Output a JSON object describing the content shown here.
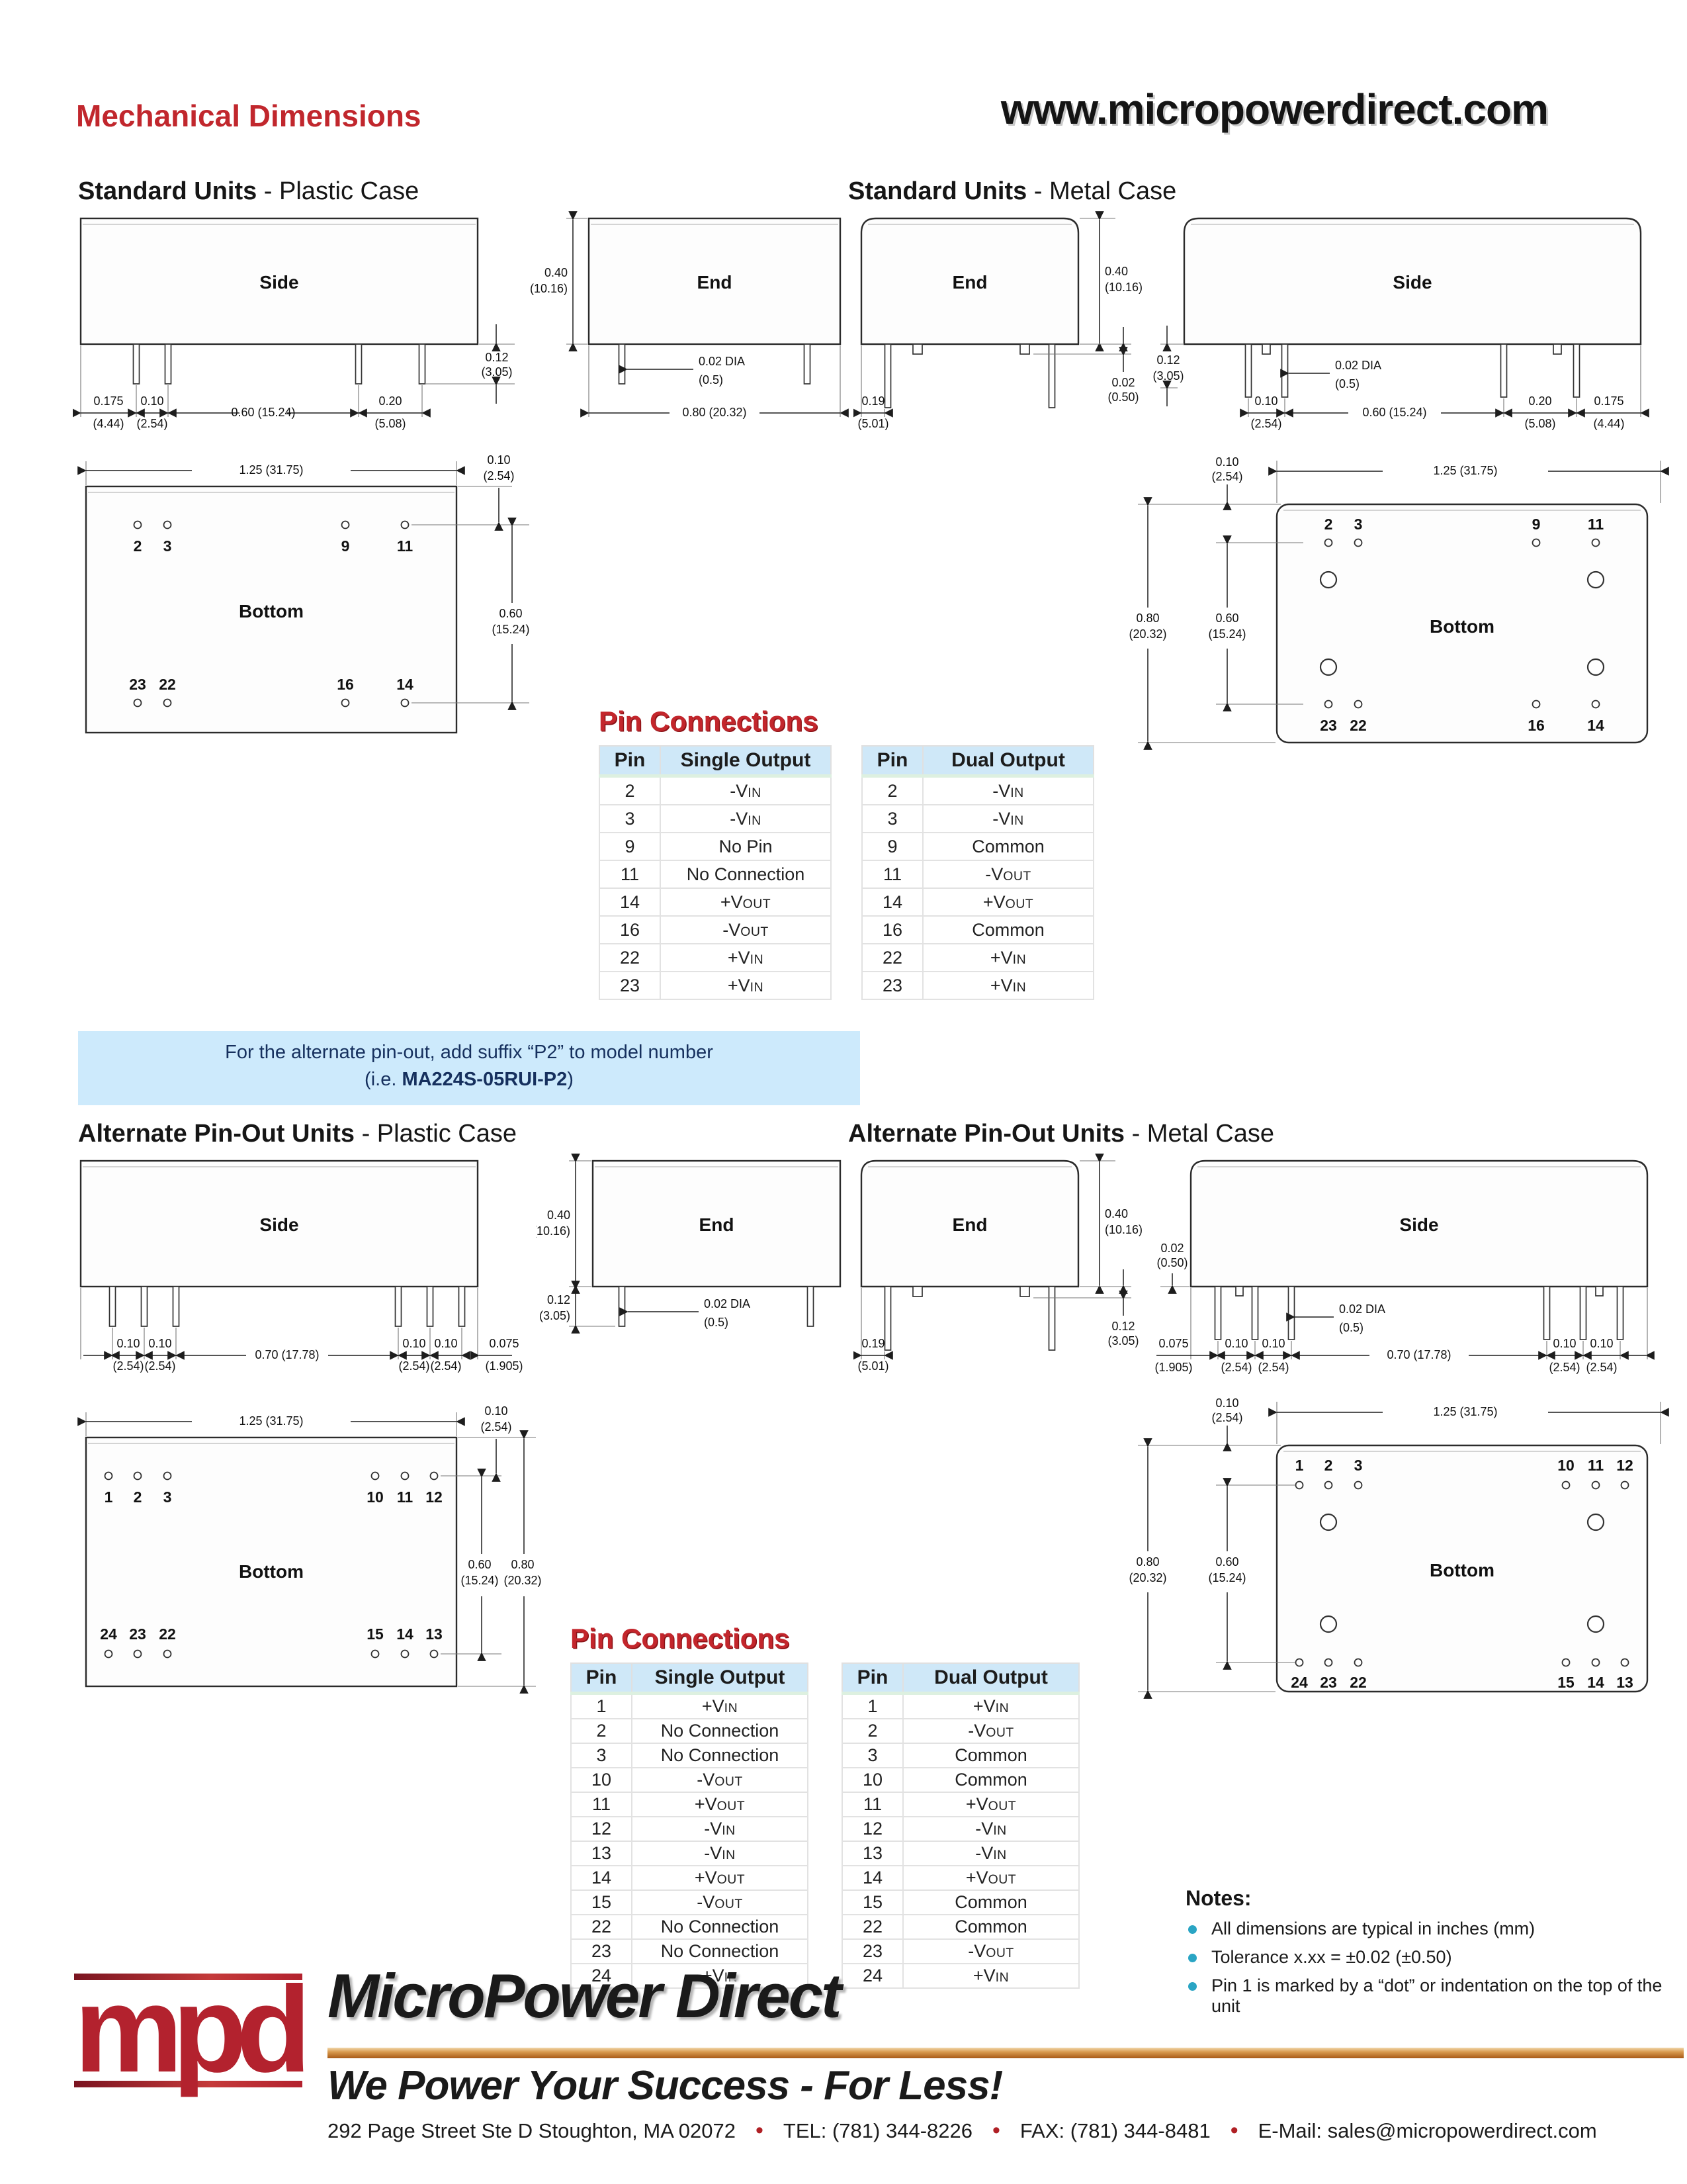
{
  "header": {
    "title": "Mechanical Dimensions",
    "website": "www.micropowerdirect.com"
  },
  "sections": {
    "std_plastic": {
      "bold": "Standard Units",
      "rest": " - Plastic Case"
    },
    "std_metal": {
      "bold": "Standard Units",
      "rest": " - Metal Case"
    },
    "alt_plastic": {
      "bold": "Alternate Pin-Out Units",
      "rest": " - Plastic Case"
    },
    "alt_metal": {
      "bold": "Alternate Pin-Out Units",
      "rest": " - Metal Case"
    }
  },
  "drawings": {
    "labels": {
      "side": "Side",
      "end": "End",
      "bottom": "Bottom"
    },
    "dims": {
      "in_0175": "0.175",
      "mm_0175": "(4.44)",
      "in_010": "0.10",
      "mm_010": "(2.54)",
      "in_060_inline": "0.60 (15.24)",
      "in_020": "0.20",
      "mm_020": "(5.08)",
      "in_012": "0.12",
      "mm_012": "(3.05)",
      "in_040": "0.40",
      "mm_040": "(10.16)",
      "dia_002": "0.02 DIA",
      "mm_dia_002": "(0.5)",
      "in_080_inline": "0.80 (20.32)",
      "in_019": "0.19",
      "mm_019": "(5.01)",
      "in_002": "0.02",
      "mm_002": "(0.50)",
      "in_125_inline": "1.25 (31.75)",
      "in_060": "0.60",
      "mm_060": "(15.24)",
      "in_080": "0.80",
      "mm_080": "(20.32)",
      "in_070_inline": "0.70 (17.78)",
      "in_0075": "0.075",
      "mm_0075": "(1.905)"
    },
    "pins_std": {
      "top": [
        "2",
        "3",
        "9",
        "11"
      ],
      "bottom": [
        "23",
        "22",
        "16",
        "14"
      ]
    },
    "pins_alt": {
      "top": [
        "1",
        "2",
        "3",
        "10",
        "11",
        "12"
      ],
      "bottom": [
        "24",
        "23",
        "22",
        "15",
        "14",
        "13"
      ]
    }
  },
  "banner": {
    "line1": "For the alternate pin-out, add suffix “P2” to model number",
    "line2_prefix": "(i.e. ",
    "model": "MA224S-05RUI-P2",
    "line2_suffix": ")"
  },
  "pin_tables": {
    "title": "Pin Connections",
    "standard": {
      "single": {
        "headers": [
          "Pin",
          "Single Output"
        ],
        "rows": [
          [
            "2",
            "-VIN"
          ],
          [
            "3",
            "-VIN"
          ],
          [
            "9",
            "No Pin"
          ],
          [
            "11",
            "No Connection"
          ],
          [
            "14",
            "+VOUT"
          ],
          [
            "16",
            "-VOUT"
          ],
          [
            "22",
            "+VIN"
          ],
          [
            "23",
            "+VIN"
          ]
        ]
      },
      "dual": {
        "headers": [
          "Pin",
          "Dual Output"
        ],
        "rows": [
          [
            "2",
            "-VIN"
          ],
          [
            "3",
            "-VIN"
          ],
          [
            "9",
            "Common"
          ],
          [
            "11",
            "-VOUT"
          ],
          [
            "14",
            "+VOUT"
          ],
          [
            "16",
            "Common"
          ],
          [
            "22",
            "+VIN"
          ],
          [
            "23",
            "+VIN"
          ]
        ]
      }
    },
    "alternate": {
      "single": {
        "headers": [
          "Pin",
          "Single Output"
        ],
        "rows": [
          [
            "1",
            "+VIN"
          ],
          [
            "2",
            "No Connection"
          ],
          [
            "3",
            "No Connection"
          ],
          [
            "10",
            "-VOUT"
          ],
          [
            "11",
            "+VOUT"
          ],
          [
            "12",
            "-VIN"
          ],
          [
            "13",
            "-VIN"
          ],
          [
            "14",
            "+VOUT"
          ],
          [
            "15",
            "-VOUT"
          ],
          [
            "22",
            "No Connection"
          ],
          [
            "23",
            "No Connection"
          ],
          [
            "24",
            "+VIN"
          ]
        ]
      },
      "dual": {
        "headers": [
          "Pin",
          "Dual Output"
        ],
        "rows": [
          [
            "1",
            "+VIN"
          ],
          [
            "2",
            "-VOUT"
          ],
          [
            "3",
            "Common"
          ],
          [
            "10",
            "Common"
          ],
          [
            "11",
            "+VOUT"
          ],
          [
            "12",
            "-VIN"
          ],
          [
            "13",
            "-VIN"
          ],
          [
            "14",
            "+VOUT"
          ],
          [
            "15",
            "Common"
          ],
          [
            "22",
            "Common"
          ],
          [
            "23",
            "-VOUT"
          ],
          [
            "24",
            "+VIN"
          ]
        ]
      }
    }
  },
  "notes": {
    "title": "Notes:",
    "items": [
      "All dimensions are typical in inches (mm)",
      "Tolerance x.xx = ±0.02 (±0.50)",
      "Pin 1 is marked by a “dot” or indentation on the top of the unit"
    ]
  },
  "footer": {
    "logo_text": "mpd",
    "brand": "MicroPower Direct",
    "tagline": "We Power Your Success - For Less!",
    "address": "292 Page Street Ste D Stoughton, MA 02072",
    "tel": "TEL: (781) 344-8226",
    "fax": "FAX: (781) 344-8481",
    "email": "E-Mail: sales@micropowerdirect.com",
    "bullet": "•"
  }
}
